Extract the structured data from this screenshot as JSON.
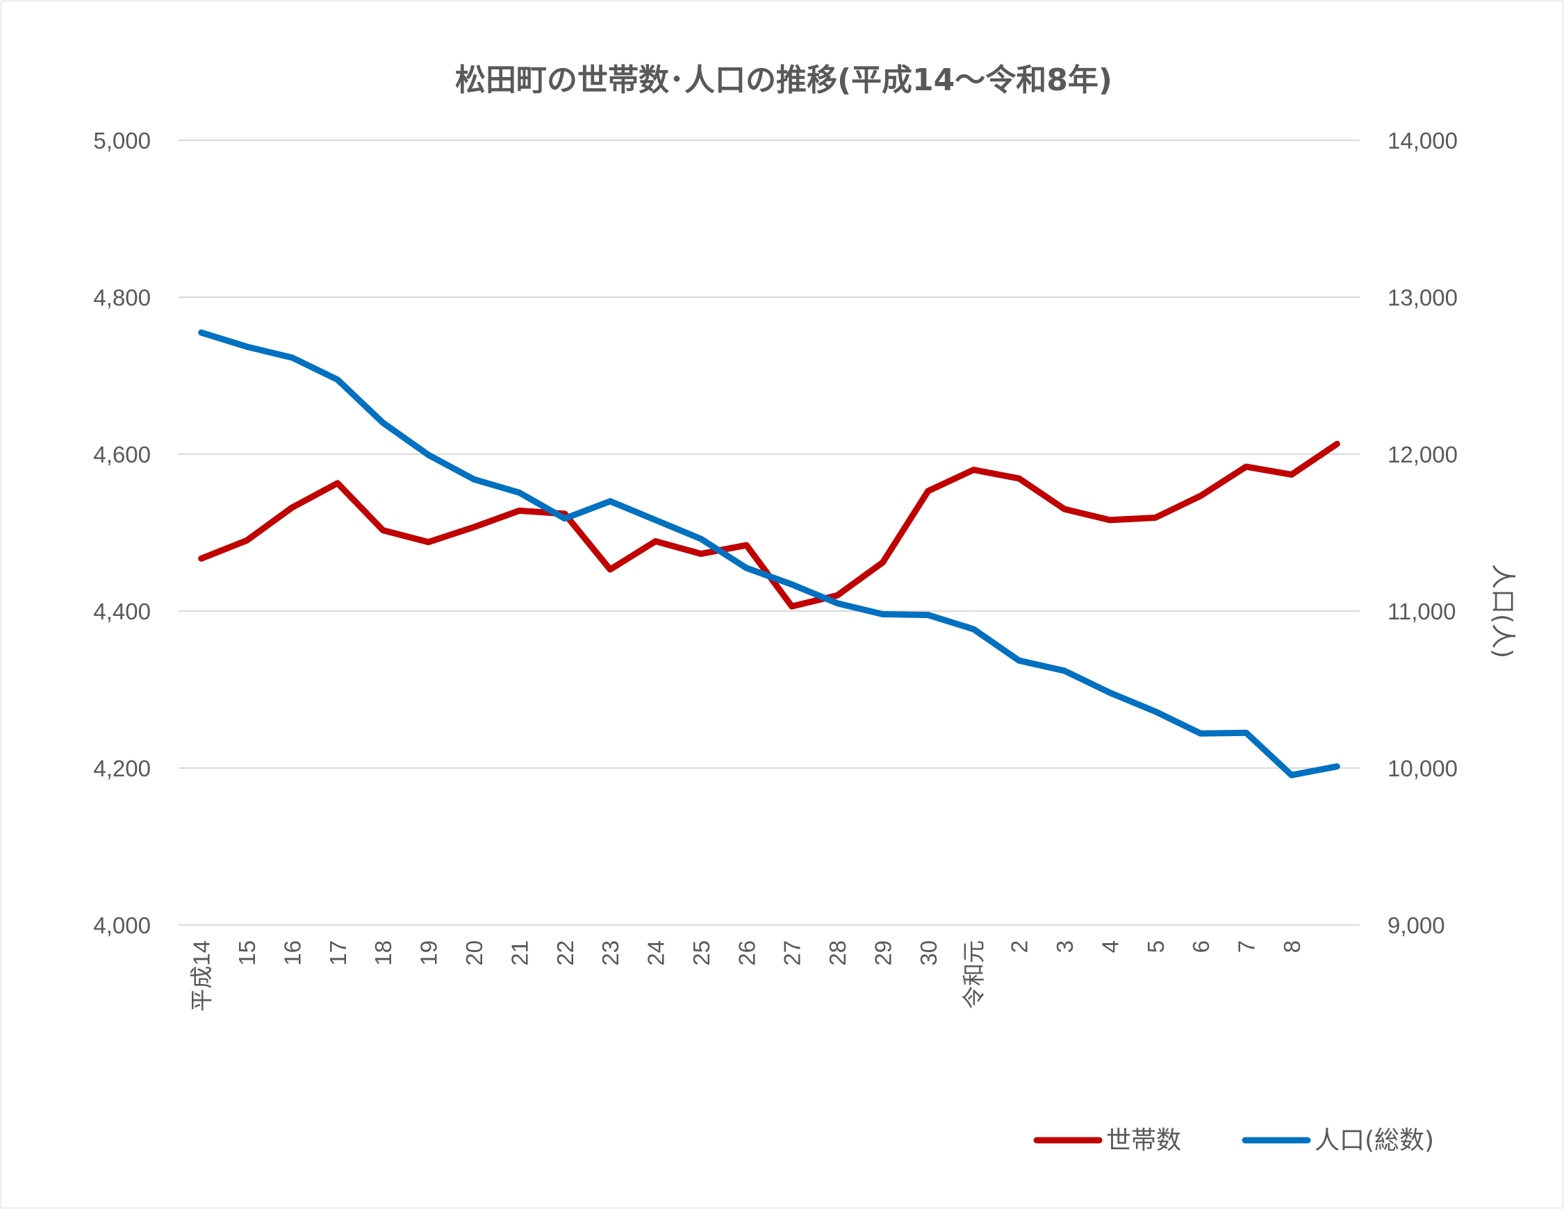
{
  "chart_data": {
    "type": "line",
    "title": "松田町の世帯数･人口の推移(平成14～令和8年)",
    "categories": [
      "平成14",
      "15",
      "16",
      "17",
      "18",
      "19",
      "20",
      "21",
      "22",
      "23",
      "24",
      "25",
      "26",
      "27",
      "28",
      "29",
      "30",
      "令和元",
      "2",
      "3",
      "4",
      "5",
      "6",
      "7",
      "8",
      ""
    ],
    "y_left": {
      "ylim": [
        4000,
        5000
      ],
      "ticks": [
        "4,000",
        "4,200",
        "4,400",
        "4,600",
        "4,800",
        "5,000"
      ],
      "label": ""
    },
    "y_right": {
      "ylim": [
        9000,
        14000
      ],
      "ticks": [
        "9,000",
        "10,000",
        "11,000",
        "12,000",
        "13,000",
        "14,000"
      ],
      "label": "人口(人)"
    },
    "grid": true,
    "legend_position": "bottom-right",
    "series": [
      {
        "name": "世帯数",
        "axis": "left",
        "color": "#c00000",
        "values": [
          4467,
          4490,
          4532,
          4563,
          4503,
          4488,
          4507,
          4528,
          4524,
          4453,
          4489,
          4473,
          4484,
          4406,
          4420,
          4462,
          4553,
          4580,
          4569,
          4530,
          4516,
          4519,
          4547,
          4584,
          4574,
          4613
        ]
      },
      {
        "name": "人口(総数)",
        "axis": "right",
        "color": "#0070c0",
        "values": [
          12775,
          12685,
          12615,
          12475,
          12200,
          11995,
          11840,
          11755,
          11590,
          11700,
          11580,
          11460,
          11275,
          11170,
          11050,
          10980,
          10975,
          10885,
          10685,
          10620,
          10480,
          10360,
          10220,
          10225,
          9955,
          10010
        ]
      }
    ]
  }
}
